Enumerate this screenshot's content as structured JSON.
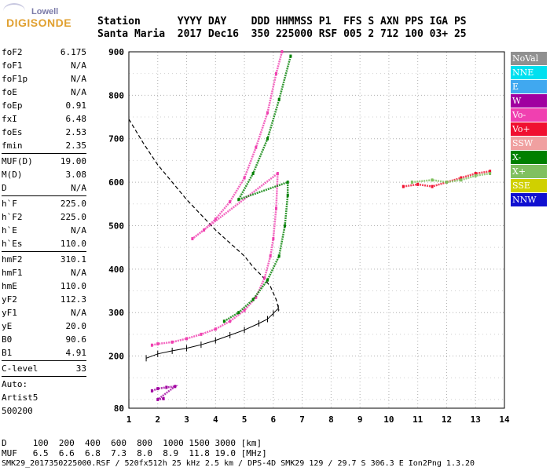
{
  "logo": {
    "line1": "Lowell",
    "line2": "DIGISONDE"
  },
  "header": {
    "row1": "Station      YYYY DAY    DDD HHMMSS P1  FFS S AXN PPS IGA PS",
    "row2": "Santa Maria  2017 Dec16  350 225000 RSF 005 2 712 100 03+ 25"
  },
  "params": {
    "group1": [
      {
        "label": "foF2",
        "value": "6.175"
      },
      {
        "label": "foF1",
        "value": "N/A"
      },
      {
        "label": "foF1p",
        "value": "N/A"
      },
      {
        "label": "foE",
        "value": "N/A"
      },
      {
        "label": "foEp",
        "value": "0.91"
      },
      {
        "label": "fxI",
        "value": "6.48"
      },
      {
        "label": "foEs",
        "value": "2.53"
      },
      {
        "label": "fmin",
        "value": "2.35"
      }
    ],
    "group2": [
      {
        "label": "MUF(D)",
        "value": "19.00"
      },
      {
        "label": "M(D)",
        "value": "3.08"
      },
      {
        "label": "D",
        "value": "N/A"
      }
    ],
    "group3": [
      {
        "label": "h`F",
        "value": "225.0"
      },
      {
        "label": "h`F2",
        "value": "225.0"
      },
      {
        "label": "h`E",
        "value": "N/A"
      },
      {
        "label": "h`Es",
        "value": "110.0"
      }
    ],
    "group4": [
      {
        "label": "hmF2",
        "value": "310.1"
      },
      {
        "label": "hmF1",
        "value": "N/A"
      },
      {
        "label": "hmE",
        "value": "110.0"
      },
      {
        "label": "yF2",
        "value": "112.3"
      },
      {
        "label": "yF1",
        "value": "N/A"
      },
      {
        "label": "yE",
        "value": "20.0"
      },
      {
        "label": "B0",
        "value": "90.6"
      },
      {
        "label": "B1",
        "value": "4.91"
      }
    ],
    "group5": [
      {
        "label": "C-level",
        "value": "33"
      }
    ],
    "auto": [
      "Auto:",
      "Artist5",
      "500200"
    ]
  },
  "legend": [
    {
      "label": "NoVal",
      "color": "#909090"
    },
    {
      "label": "NNE",
      "color": "#00e0f0"
    },
    {
      "label": "E",
      "color": "#40a8f0"
    },
    {
      "label": "W",
      "color": "#a000a0"
    },
    {
      "label": "Vo-",
      "color": "#f040b0"
    },
    {
      "label": "Vo+",
      "color": "#f01030"
    },
    {
      "label": "SSW",
      "color": "#f0a0a0"
    },
    {
      "label": "X-",
      "color": "#008000"
    },
    {
      "label": "X+",
      "color": "#80c060"
    },
    {
      "label": "SSE",
      "color": "#d0d000"
    },
    {
      "label": "NNW",
      "color": "#1010d0"
    }
  ],
  "footer": {
    "row1": "D     100  200  400  600  800  1000 1500 3000 [km]",
    "row2": "MUF   6.5  6.6  6.8  7.3  8.0  8.9  11.8 19.0 [MHz]",
    "file": "SMK29_2017350225000.RSF / 520fx512h 25 kHz 2.5 km / DPS-4D SMK29 129 / 29.7 S 306.3 E Ion2Png 1.3.20"
  },
  "chart_data": {
    "type": "scatter",
    "xlabel": "",
    "ylabel": "",
    "xlim": [
      1,
      14
    ],
    "ylim": [
      80,
      900
    ],
    "xticks": [
      1,
      2,
      3,
      4,
      5,
      6,
      7,
      8,
      9,
      10,
      11,
      12,
      13,
      14
    ],
    "yticks": [
      80,
      200,
      300,
      400,
      500,
      600,
      700,
      800,
      900
    ],
    "grid": true,
    "series": [
      {
        "name": "Vo-",
        "points": [
          [
            1.8,
            225
          ],
          [
            2.0,
            228
          ],
          [
            2.5,
            232
          ],
          [
            3.0,
            240
          ],
          [
            3.5,
            250
          ],
          [
            4.0,
            262
          ],
          [
            4.5,
            280
          ],
          [
            5.0,
            305
          ],
          [
            5.4,
            335
          ],
          [
            5.7,
            380
          ],
          [
            5.9,
            430
          ],
          [
            6.0,
            470
          ],
          [
            6.1,
            540
          ],
          [
            6.15,
            620
          ],
          [
            3.2,
            470
          ],
          [
            3.6,
            490
          ],
          [
            4.0,
            515
          ],
          [
            4.5,
            555
          ],
          [
            5.0,
            610
          ],
          [
            5.4,
            680
          ],
          [
            5.8,
            760
          ],
          [
            6.1,
            850
          ],
          [
            6.3,
            900
          ]
        ]
      },
      {
        "name": "X-",
        "points": [
          [
            4.3,
            280
          ],
          [
            4.8,
            300
          ],
          [
            5.3,
            330
          ],
          [
            5.8,
            375
          ],
          [
            6.2,
            430
          ],
          [
            6.4,
            500
          ],
          [
            6.5,
            570
          ],
          [
            6.5,
            600
          ],
          [
            4.8,
            560
          ],
          [
            5.3,
            620
          ],
          [
            5.8,
            700
          ],
          [
            6.2,
            790
          ],
          [
            6.6,
            890
          ]
        ]
      },
      {
        "name": "Vo+",
        "points": [
          [
            10.5,
            590
          ],
          [
            11.0,
            595
          ],
          [
            11.5,
            590
          ],
          [
            12.0,
            600
          ],
          [
            12.5,
            610
          ],
          [
            13.0,
            620
          ],
          [
            13.5,
            625
          ]
        ]
      },
      {
        "name": "X+",
        "points": [
          [
            10.8,
            600
          ],
          [
            11.5,
            605
          ],
          [
            12.0,
            600
          ],
          [
            12.5,
            605
          ],
          [
            13.0,
            615
          ],
          [
            13.5,
            620
          ]
        ]
      },
      {
        "name": "W",
        "points": [
          [
            1.8,
            120
          ],
          [
            2.0,
            125
          ],
          [
            2.3,
            128
          ],
          [
            2.6,
            130
          ],
          [
            2.0,
            100
          ],
          [
            2.2,
            102
          ]
        ]
      }
    ],
    "profile": [
      [
        1.6,
        195
      ],
      [
        2.0,
        205
      ],
      [
        2.5,
        212
      ],
      [
        3.0,
        218
      ],
      [
        3.5,
        226
      ],
      [
        4.0,
        236
      ],
      [
        4.5,
        248
      ],
      [
        5.0,
        260
      ],
      [
        5.5,
        275
      ],
      [
        5.8,
        285
      ],
      [
        6.0,
        298
      ],
      [
        6.175,
        310
      ]
    ],
    "muf_curve": [
      [
        1,
        745
      ],
      [
        1.5,
        690
      ],
      [
        2,
        640
      ],
      [
        2.5,
        600
      ],
      [
        3,
        560
      ],
      [
        3.5,
        525
      ],
      [
        4,
        490
      ],
      [
        4.5,
        460
      ],
      [
        5,
        430
      ],
      [
        5.3,
        405
      ],
      [
        5.6,
        385
      ],
      [
        5.9,
        360
      ],
      [
        6.1,
        330
      ],
      [
        6.2,
        305
      ]
    ]
  }
}
